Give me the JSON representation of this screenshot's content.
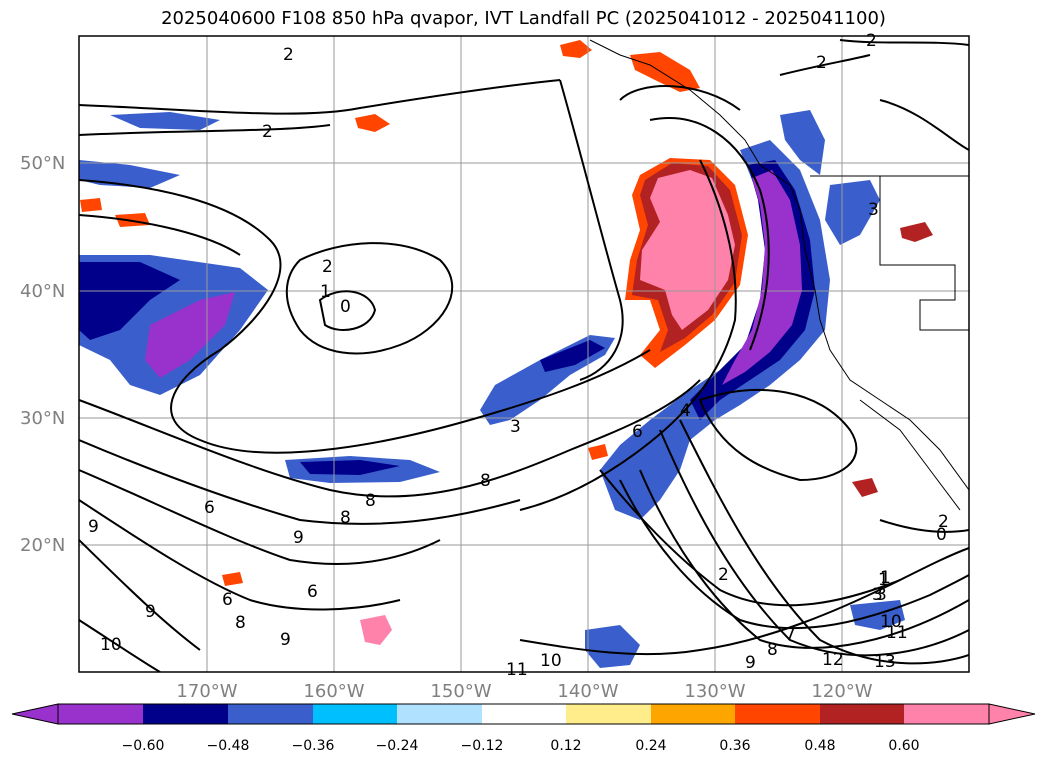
{
  "title": "2025040600 F108 850 hPa qvapor, IVT Landfall PC (2025041012 - 2025041100)",
  "map": {
    "lat_labels": [
      "50°N",
      "40°N",
      "30°N",
      "20°N"
    ],
    "lon_labels": [
      "170°W",
      "160°W",
      "150°W",
      "140°W",
      "130°W",
      "120°W"
    ],
    "contour_labels": [
      "2",
      "2",
      "2",
      "2",
      "1",
      "0",
      "2",
      "1",
      "3",
      "3",
      "8",
      "8",
      "6",
      "9",
      "9",
      "8",
      "6",
      "9",
      "6",
      "8",
      "10",
      "9",
      "10",
      "11",
      "6",
      "4",
      "2",
      "1",
      "3",
      "10",
      "11",
      "12",
      "13",
      "9",
      "8",
      "7",
      "0",
      "2",
      "3"
    ]
  },
  "colorbar": {
    "colors": [
      "#9932CC",
      "#00008B",
      "#3A5FCD",
      "#00BFFF",
      "#B0E2FF",
      "#FFFFFF",
      "#FFEC8B",
      "#FFA500",
      "#FF4500",
      "#B22222",
      "#FF82AB"
    ],
    "ticks": [
      "−0.60",
      "−0.48",
      "−0.36",
      "−0.24",
      "−0.12",
      "0.12",
      "0.24",
      "0.36",
      "0.48",
      "0.60"
    ],
    "extend": "both"
  }
}
